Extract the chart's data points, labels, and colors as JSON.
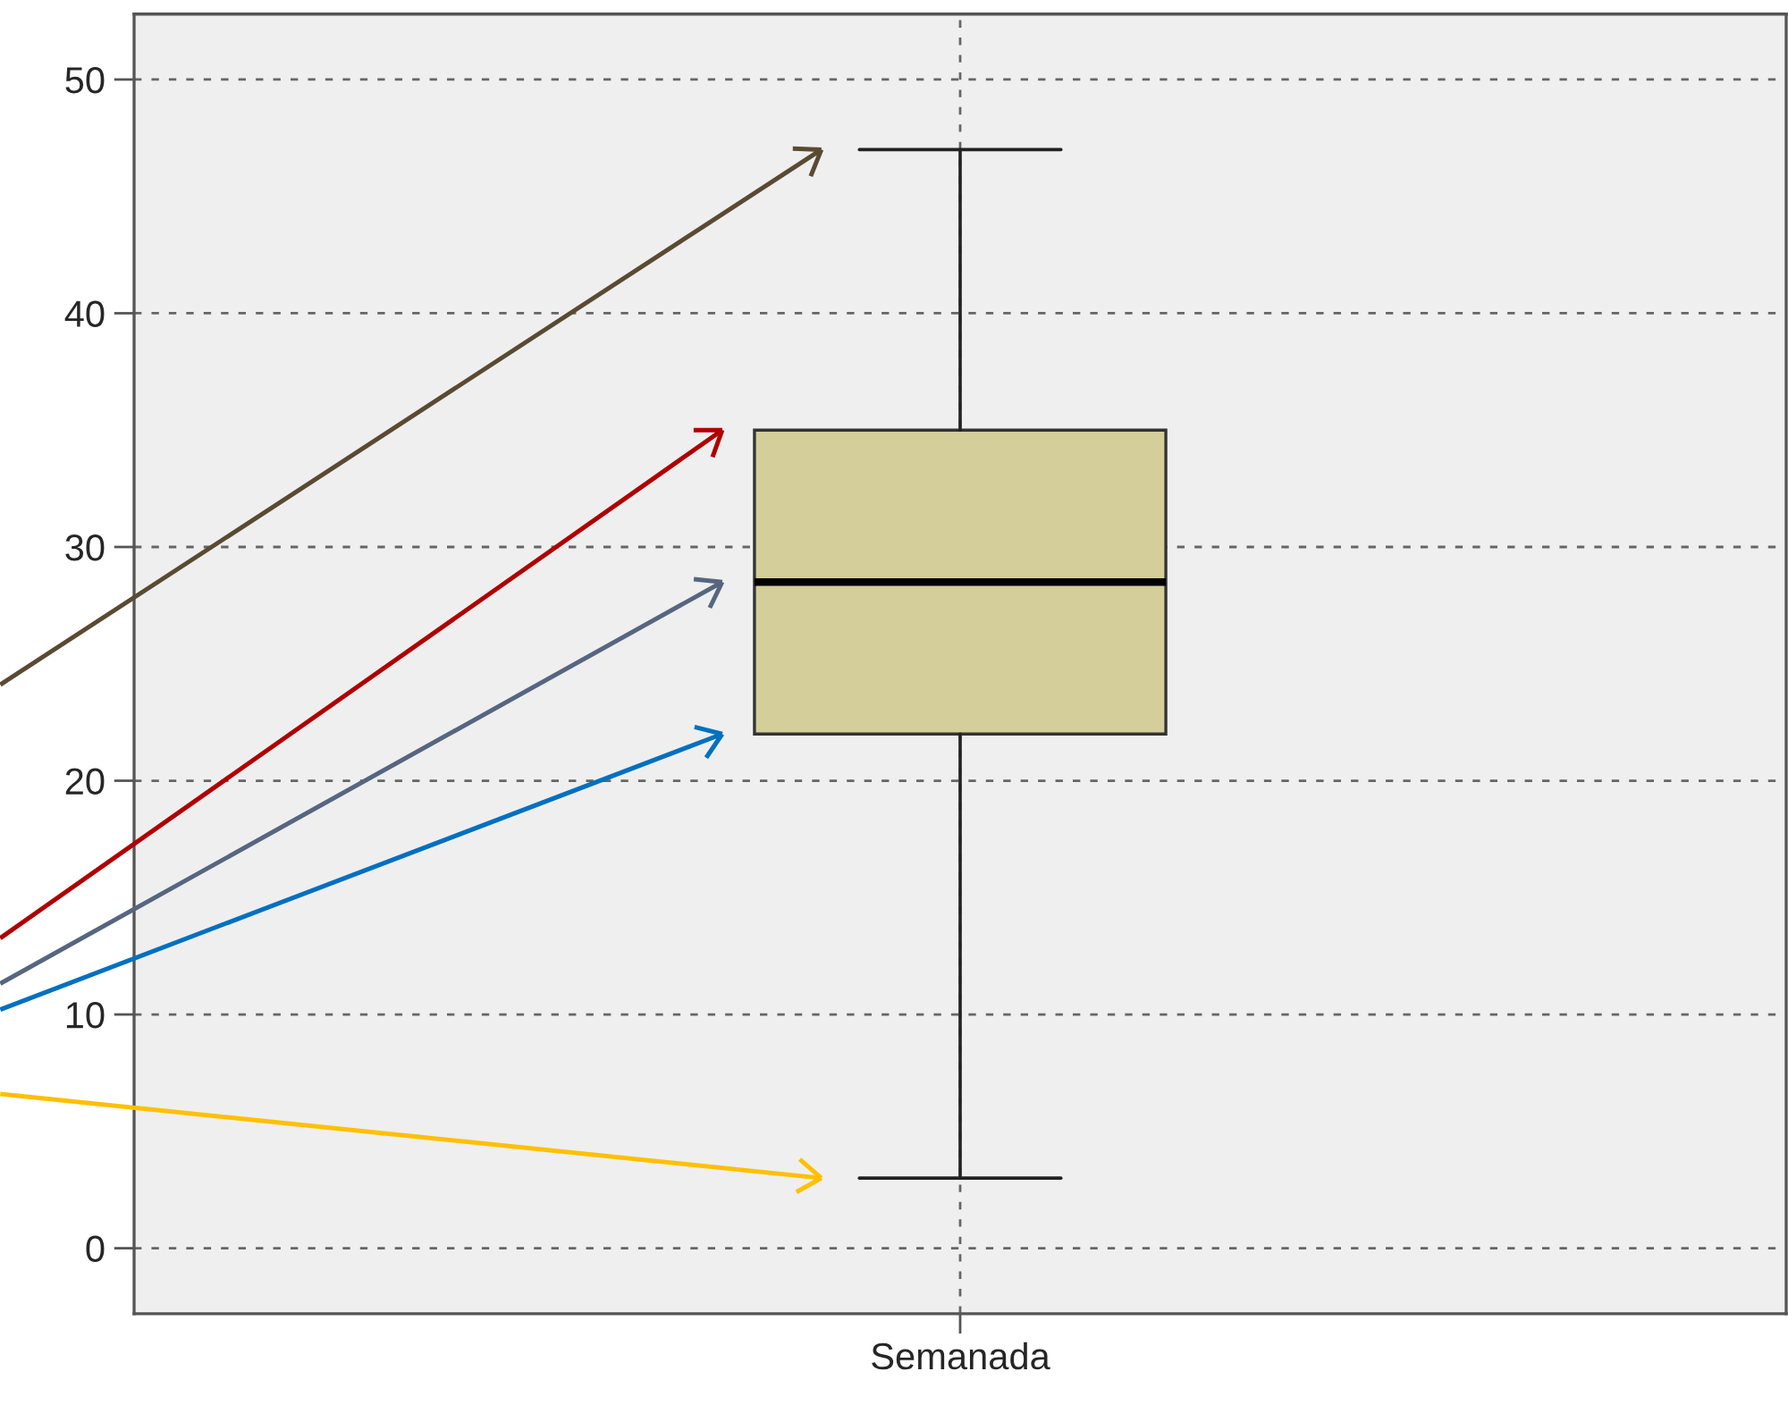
{
  "chart_data": {
    "type": "box",
    "categories": [
      "Semanada"
    ],
    "boxes": [
      {
        "low": 3,
        "q1": 22,
        "median": 28.5,
        "q3": 35,
        "high": 47
      }
    ],
    "color": "#d3ce9a",
    "ylim": [
      -2.8,
      52.8
    ],
    "yticks": [
      0,
      10,
      20,
      30,
      40,
      50
    ],
    "grid": true
  }
}
